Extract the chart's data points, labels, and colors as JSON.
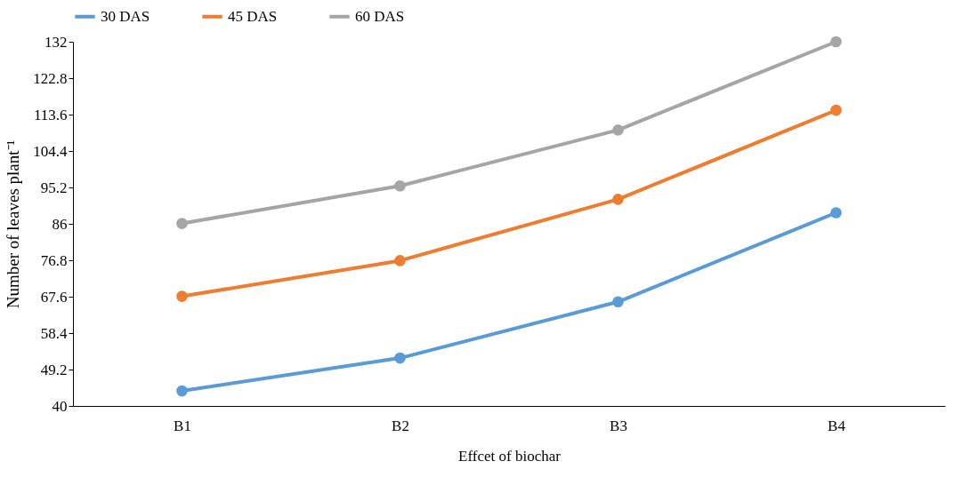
{
  "chart_data": {
    "type": "line",
    "xlabel": "Effcet of biochar",
    "ylabel": "Number of leaves plant⁻¹",
    "categories": [
      "B1",
      "B2",
      "B3",
      "B4"
    ],
    "series": [
      {
        "name": "30 DAS",
        "color": "#5b9bd5",
        "values": [
          43.8,
          52.1,
          66.3,
          88.8
        ]
      },
      {
        "name": "45 DAS",
        "color": "#ed7d31",
        "values": [
          67.7,
          76.7,
          92.2,
          114.7
        ]
      },
      {
        "name": "60 DAS",
        "color": "#a5a5a5",
        "values": [
          86.1,
          95.6,
          109.7,
          132
        ]
      }
    ],
    "ylim": [
      40,
      132
    ],
    "yticks": [
      40,
      49.2,
      58.4,
      67.6,
      76.8,
      86,
      95.2,
      104.4,
      113.6,
      122.8,
      132
    ],
    "grid": false,
    "legend": "top",
    "marker": "circle",
    "line_style": "solid"
  }
}
